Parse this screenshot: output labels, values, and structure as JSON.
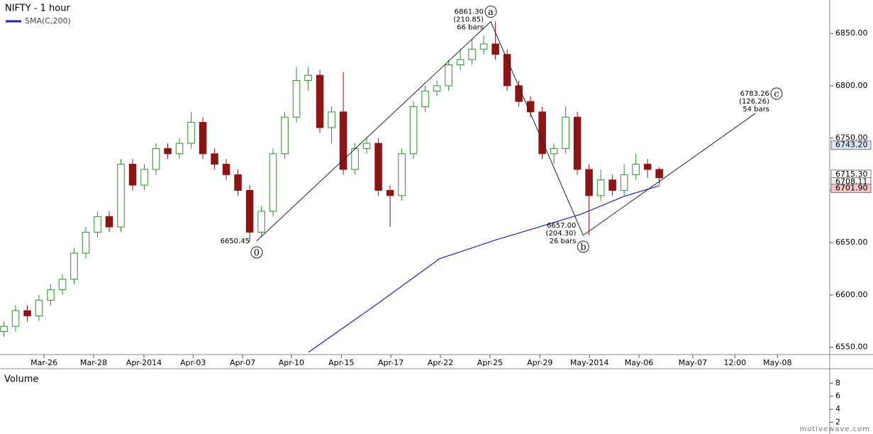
{
  "chart_data": {
    "type": "candlestick",
    "title": "NIFTY - 1 hour",
    "xlim": [
      0,
      212.7
    ],
    "ylim": [
      6543,
      6882
    ],
    "yticks": [
      {
        "value": 6550,
        "label": "6550.00"
      },
      {
        "value": 6600,
        "label": "6600.00"
      },
      {
        "value": 6650,
        "label": "6650.00"
      },
      {
        "value": 6700,
        "label": "6700.00"
      },
      {
        "value": 6750,
        "label": "6750.00"
      },
      {
        "value": 6800,
        "label": "6800.00"
      },
      {
        "value": 6850,
        "label": "6850.00"
      }
    ],
    "xticks": [
      {
        "value": 11.3,
        "label": "Mar-26"
      },
      {
        "value": 24,
        "label": "Mar-28"
      },
      {
        "value": 36.9,
        "label": "Apr-2014"
      },
      {
        "value": 49.5,
        "label": "Apr-03"
      },
      {
        "value": 62.2,
        "label": "Apr-07"
      },
      {
        "value": 74.7,
        "label": "Apr-10"
      },
      {
        "value": 87.5,
        "label": "Apr-15"
      },
      {
        "value": 100.2,
        "label": "Apr-17"
      },
      {
        "value": 112.9,
        "label": "Apr-22"
      },
      {
        "value": 125.6,
        "label": "Apr-25"
      },
      {
        "value": 138.4,
        "label": "Apr-29"
      },
      {
        "value": 151.1,
        "label": "May-2014"
      },
      {
        "value": 163.8,
        "label": "May-06"
      },
      {
        "value": 177.6,
        "label": "May-07"
      },
      {
        "value": 188.4,
        "label": "12:00"
      },
      {
        "value": 199.3,
        "label": "May-08"
      }
    ],
    "up_color": "#2f8f2f",
    "down_color": "#8b1515",
    "x": [
      1,
      4,
      7,
      10,
      13,
      16,
      19,
      22,
      25,
      28,
      31,
      34,
      37,
      40,
      43,
      46,
      49,
      52,
      55,
      58,
      61,
      64,
      67,
      70,
      73,
      76,
      79,
      82,
      85,
      88,
      91,
      94,
      97,
      100,
      103,
      106,
      109,
      112,
      115,
      118,
      121,
      124,
      127,
      130,
      133,
      136,
      139,
      142,
      145,
      148,
      151,
      154,
      157,
      160,
      163,
      166,
      169
    ],
    "open": [
      6565,
      6570,
      6585,
      6580,
      6595,
      6605,
      6615,
      6640,
      6660,
      6675,
      6665,
      6725,
      6705,
      6720,
      6740,
      6735,
      6745,
      6765,
      6735,
      6725,
      6715,
      6700,
      6660,
      6680,
      6735,
      6770,
      6805,
      6810,
      6760,
      6775,
      6720,
      6740,
      6745,
      6700,
      6695,
      6735,
      6780,
      6795,
      6800,
      6820,
      6825,
      6835,
      6840,
      6830,
      6800,
      6785,
      6775,
      6735,
      6740,
      6770,
      6720,
      6695,
      6710,
      6700,
      6715,
      6725,
      6720
    ],
    "high": [
      6575,
      6590,
      6590,
      6600,
      6610,
      6620,
      6645,
      6665,
      6680,
      6680,
      6730,
      6730,
      6725,
      6745,
      6745,
      6750,
      6775,
      6770,
      6740,
      6730,
      6720,
      6705,
      6685,
      6740,
      6775,
      6818,
      6818,
      6815,
      6780,
      6813,
      6745,
      6750,
      6750,
      6705,
      6740,
      6785,
      6800,
      6805,
      6825,
      6835,
      6845,
      6848,
      6861.3,
      6835,
      6805,
      6790,
      6780,
      6745,
      6780,
      6775,
      6725,
      6720,
      6715,
      6725,
      6735,
      6730,
      6722
    ],
    "low": [
      6560,
      6565,
      6575,
      6575,
      6590,
      6600,
      6610,
      6635,
      6655,
      6660,
      6660,
      6700,
      6700,
      6715,
      6730,
      6730,
      6740,
      6730,
      6720,
      6710,
      6695,
      6650.45,
      6655,
      6675,
      6730,
      6765,
      6795,
      6755,
      6745,
      6715,
      6715,
      6735,
      6695,
      6665,
      6690,
      6730,
      6775,
      6790,
      6795,
      6815,
      6820,
      6830,
      6825,
      6795,
      6780,
      6770,
      6730,
      6725,
      6735,
      6715,
      6657,
      6690,
      6695,
      6695,
      6710,
      6712,
      6705
    ],
    "close": [
      6570,
      6585,
      6580,
      6595,
      6605,
      6615,
      6640,
      6660,
      6675,
      6665,
      6725,
      6705,
      6720,
      6740,
      6735,
      6745,
      6765,
      6735,
      6725,
      6715,
      6700,
      6660,
      6680,
      6735,
      6770,
      6805,
      6810,
      6760,
      6775,
      6720,
      6740,
      6745,
      6700,
      6695,
      6735,
      6780,
      6795,
      6800,
      6820,
      6825,
      6835,
      6840,
      6830,
      6800,
      6785,
      6775,
      6735,
      6740,
      6770,
      6720,
      6695,
      6710,
      6700,
      6715,
      6725,
      6720,
      6712
    ],
    "series": [
      {
        "name": "SMA(C,200)",
        "color": "#2020d0",
        "x": [
          79.1,
          96.4,
          112.7,
          127.3,
          138.2,
          149,
          160,
          169
        ],
        "values": [
          6545.3,
          6590.6,
          6634.7,
          6652.9,
          6665,
          6677.3,
          6694.3,
          6704.4
        ]
      }
    ],
    "waves": [
      {
        "label": "0",
        "x": 65.8,
        "y": 6651.6,
        "price": "6650.45"
      },
      {
        "label": "a",
        "x": 125.8,
        "y": 6861.3,
        "price": "6861.30",
        "change": "(210.85)",
        "bars": "66 bars"
      },
      {
        "label": "b",
        "x": 149.5,
        "y": 6657,
        "price": "6657.00",
        "change": "(204.30)",
        "bars": "26 bars"
      },
      {
        "label": "c",
        "x": 193.6,
        "y": 6773.5,
        "price": "6783.26",
        "change": "(126.26)",
        "bars": "54 bars"
      }
    ],
    "price_tags": [
      {
        "value": 6743.2,
        "label": "6743.20",
        "color": "#dce6f5"
      },
      {
        "value": 6715.3,
        "label": "6715.30",
        "color": "#ffffff"
      },
      {
        "value": 6708.11,
        "label": "6708.11",
        "color": "#ffffff"
      },
      {
        "value": 6701.9,
        "label": "6701.90",
        "color": "#f2c4c4"
      }
    ],
    "volume": {
      "title": "Volume",
      "ylim": [
        0,
        10.2
      ],
      "yticks": [
        2,
        4,
        6,
        8
      ]
    },
    "watermark": "motivewave.com"
  }
}
